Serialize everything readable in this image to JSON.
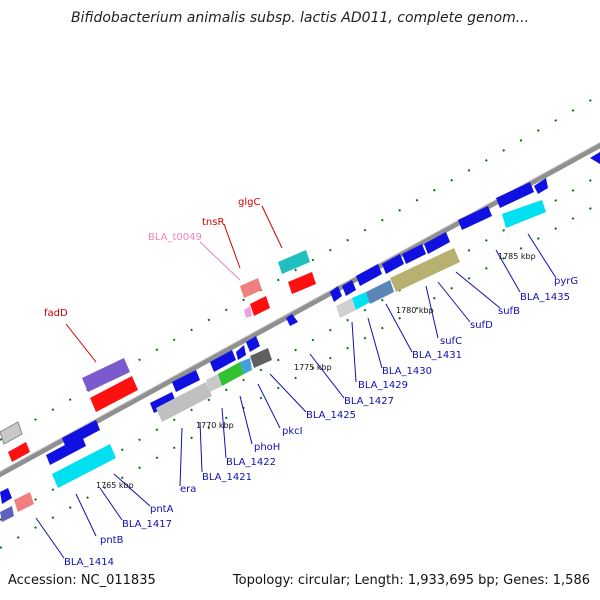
{
  "header": {
    "title": "Bifidobacterium animalis subsp. lactis AD011, complete genom..."
  },
  "footer": {
    "accession": "Accession: NC_011835",
    "summary": "Topology: circular; Length: 1,933,695 bp; Genes: 1,586"
  },
  "map": {
    "scale_labels": [
      "1765 kbp",
      "1770 kbp",
      "1775 kbp",
      "1780 kbp",
      "1785 kbp"
    ],
    "gene_labels": {
      "blue": [
        "BLA_1414",
        "pntB",
        "BLA_1417",
        "pntA",
        "era",
        "BLA_1421",
        "BLA_1422",
        "phoH",
        "pkcI",
        "BLA_1425",
        "BLA_1427",
        "BLA_1429",
        "BLA_1430",
        "BLA_1431",
        "sufC",
        "sufD",
        "sufB",
        "BLA_1435",
        "pyrG"
      ],
      "red": [
        "fadD",
        "tnsR",
        "glgC"
      ],
      "pink": [
        "BLA_t0049"
      ]
    },
    "colors": {
      "backbone": "#909090",
      "gene_blue": "#1010e0",
      "gene_red": "#ff1010",
      "label_blue": "#1010b0",
      "label_red": "#d00000",
      "label_pink": "#f080c0",
      "tick_green": "#107010"
    }
  }
}
